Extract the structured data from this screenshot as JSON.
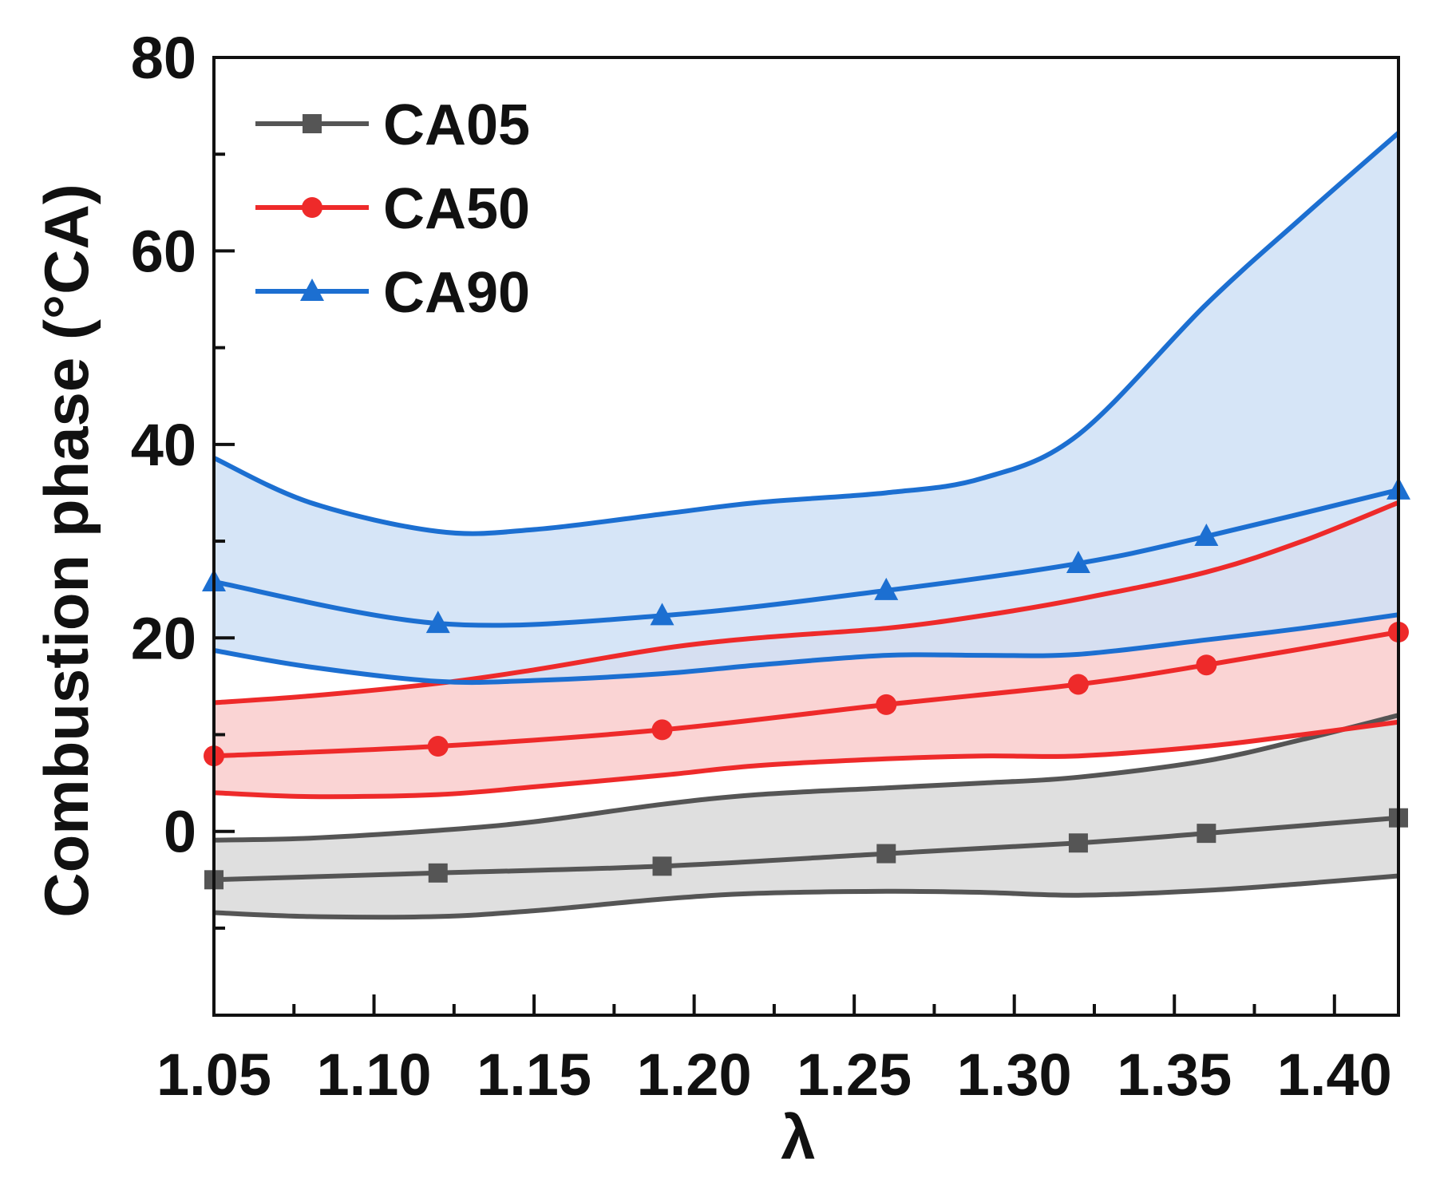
{
  "chart_data": {
    "type": "line",
    "title": "",
    "xlabel": "λ",
    "ylabel": "Combustion phase (°CA)",
    "xlim": [
      1.05,
      1.42
    ],
    "ylim": [
      -19,
      80
    ],
    "grid": false,
    "legend_position": "top-left",
    "x_tick_labels": [
      "1.05",
      "1.10",
      "1.15",
      "1.20",
      "1.25",
      "1.30",
      "1.35",
      "1.40"
    ],
    "x_ticks": [
      1.05,
      1.1,
      1.15,
      1.2,
      1.25,
      1.3,
      1.35,
      1.4
    ],
    "y_tick_labels": [
      "0",
      "20",
      "40",
      "60",
      "80"
    ],
    "y_ticks": [
      0,
      20,
      40,
      60,
      80
    ],
    "series": [
      {
        "name": "CA05",
        "color": "#555555",
        "fill": "#d9d9d9",
        "marker": "square",
        "x": [
          1.05,
          1.12,
          1.19,
          1.26,
          1.32,
          1.36,
          1.42
        ],
        "values": [
          -5,
          -4.3,
          -3.6,
          -2.3,
          -1.2,
          -0.2,
          1.4
        ],
        "band_x": [
          1.05,
          1.08,
          1.12,
          1.15,
          1.19,
          1.22,
          1.26,
          1.29,
          1.32,
          1.36,
          1.39,
          1.42
        ],
        "band_upper": [
          -0.9,
          -0.7,
          0.1,
          1.0,
          2.8,
          3.8,
          4.5,
          5.0,
          5.6,
          7.3,
          9.5,
          12.0
        ],
        "band_lower": [
          -8.4,
          -8.8,
          -8.8,
          -8.2,
          -7.0,
          -6.4,
          -6.2,
          -6.3,
          -6.6,
          -6.1,
          -5.4,
          -4.6
        ]
      },
      {
        "name": "CA50",
        "color": "#ee2a2a",
        "fill": "#f9cccc",
        "marker": "circle",
        "x": [
          1.05,
          1.12,
          1.19,
          1.26,
          1.32,
          1.36,
          1.42
        ],
        "values": [
          7.8,
          8.8,
          10.5,
          13.1,
          15.2,
          17.2,
          20.6
        ],
        "band_x": [
          1.05,
          1.08,
          1.12,
          1.15,
          1.19,
          1.22,
          1.26,
          1.29,
          1.32,
          1.36,
          1.39,
          1.42
        ],
        "band_upper": [
          13.3,
          14.0,
          15.3,
          16.7,
          18.9,
          20.0,
          21.0,
          22.3,
          24.0,
          26.8,
          30.0,
          34.0
        ],
        "band_lower": [
          4.0,
          3.6,
          3.8,
          4.6,
          5.8,
          6.8,
          7.5,
          7.8,
          7.8,
          8.8,
          10.0,
          11.3
        ]
      },
      {
        "name": "CA90",
        "color": "#1c6fd1",
        "fill": "#cfe1f6",
        "marker": "triangle",
        "x": [
          1.05,
          1.12,
          1.19,
          1.26,
          1.32,
          1.36,
          1.42
        ],
        "values": [
          25.8,
          21.5,
          22.3,
          24.9,
          27.7,
          30.5,
          35.3
        ],
        "band_x": [
          1.05,
          1.08,
          1.12,
          1.15,
          1.19,
          1.22,
          1.26,
          1.29,
          1.32,
          1.36,
          1.39,
          1.42
        ],
        "band_upper": [
          38.6,
          34.0,
          31.0,
          31.2,
          32.8,
          34.0,
          35.0,
          36.5,
          41.0,
          54.5,
          63.5,
          72.2
        ],
        "band_lower": [
          18.7,
          17.0,
          15.5,
          15.6,
          16.3,
          17.2,
          18.2,
          18.2,
          18.3,
          19.8,
          21.0,
          22.4
        ]
      }
    ]
  }
}
